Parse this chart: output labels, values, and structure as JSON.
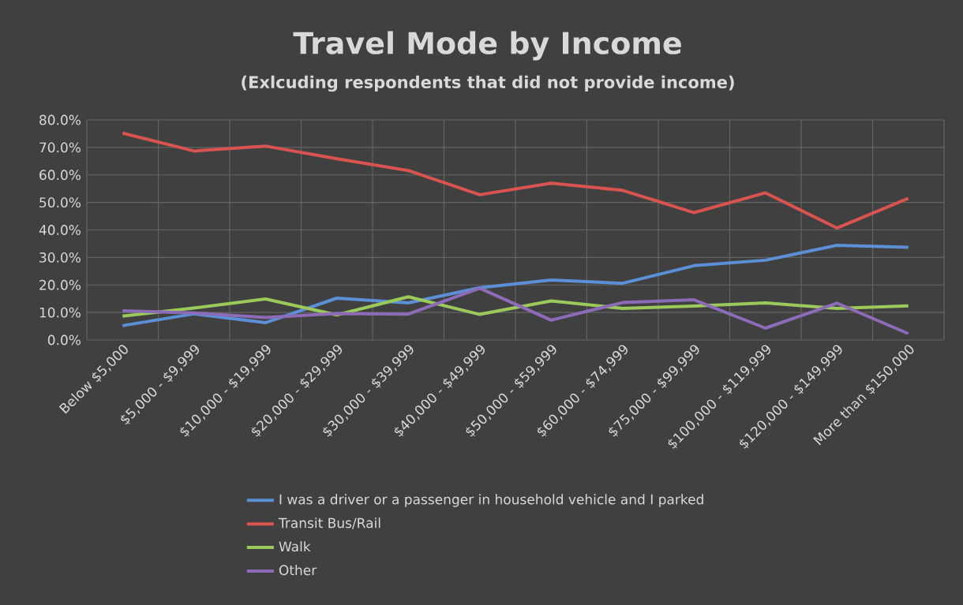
{
  "chart_data": {
    "type": "line",
    "title": "Travel Mode by Income",
    "subtitle": "(Exlcuding respondents that did not provide income)",
    "categories": [
      "Below $5,000",
      "$5,000 - $9,999",
      "$10,000 - $19,999",
      "$20,000 - $29,999",
      "$30,000 - $39,999",
      "$40,000 - $49,999",
      "$50,000 - $59,999",
      "$60,000 - $74,999",
      "$75,000 - $99,999",
      "$100,000 - $119,999",
      "$120,000 - $149,999",
      "More than $150,000"
    ],
    "series": [
      {
        "name": "I was a driver or a passenger in household vehicle and I parked",
        "color": "#5b8fd6",
        "values": [
          5.2,
          9.5,
          6.3,
          15.2,
          13.5,
          19.0,
          21.8,
          20.6,
          27.0,
          29.0,
          34.4,
          33.7
        ]
      },
      {
        "name": "Transit Bus/Rail",
        "color": "#d9534f",
        "values": [
          75.2,
          68.7,
          70.5,
          65.9,
          61.6,
          52.8,
          57.0,
          54.4,
          46.3,
          53.5,
          40.7,
          51.5
        ]
      },
      {
        "name": "Walk",
        "color": "#9bc95a",
        "values": [
          8.7,
          11.6,
          14.9,
          9.1,
          15.7,
          9.3,
          14.2,
          11.5,
          12.3,
          13.5,
          11.5,
          12.4
        ]
      },
      {
        "name": "Other",
        "color": "#8e6bb8",
        "values": [
          10.6,
          9.8,
          8.2,
          9.6,
          9.4,
          18.8,
          7.2,
          13.6,
          14.6,
          4.3,
          13.4,
          2.3
        ]
      }
    ],
    "ylim": [
      0,
      80
    ],
    "yticks": [
      {
        "value": 0,
        "label": "0.0%"
      },
      {
        "value": 10,
        "label": "10.0%"
      },
      {
        "value": 20,
        "label": "20.0%"
      },
      {
        "value": 30,
        "label": "30.0%"
      },
      {
        "value": 40,
        "label": "40.0%"
      },
      {
        "value": 50,
        "label": "50.0%"
      },
      {
        "value": 60,
        "label": "60.0%"
      },
      {
        "value": 70,
        "label": "70.0%"
      },
      {
        "value": 80,
        "label": "80.0%"
      }
    ],
    "grid": true,
    "legend": "bottom",
    "marker": "none",
    "line_style": "solid"
  }
}
